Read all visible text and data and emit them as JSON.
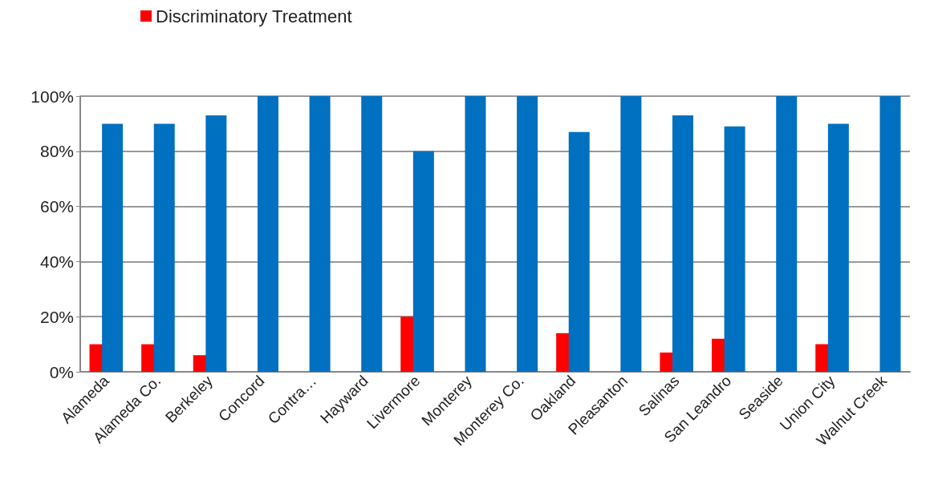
{
  "chart_data": {
    "type": "bar",
    "categories": [
      "Alameda",
      "Alameda Co.",
      "Berkeley",
      "Concord",
      "Contra…",
      "Hayward",
      "Livermore",
      "Monterey",
      "Monterey Co.",
      "Oakland",
      "Pleasanton",
      "Salinas",
      "San Leandro",
      "Seaside",
      "Union City",
      "Walnut Creek"
    ],
    "series": [
      {
        "name": "Discriminatory Treatment",
        "color": "#ff0000",
        "values": [
          10,
          10,
          6,
          0,
          0,
          0,
          20,
          0,
          0,
          14,
          0,
          7,
          12,
          0,
          10,
          0
        ]
      },
      {
        "color": "#0070c0",
        "values": [
          90,
          90,
          93,
          100,
          100,
          100,
          80,
          100,
          100,
          87,
          100,
          93,
          89,
          100,
          90,
          100
        ]
      }
    ],
    "ylim": [
      0,
      100
    ],
    "yticks": [
      {
        "value": 0,
        "label": "0%"
      },
      {
        "value": 20,
        "label": "20%"
      },
      {
        "value": 40,
        "label": "40%"
      },
      {
        "value": 60,
        "label": "60%"
      },
      {
        "value": 80,
        "label": "80%"
      },
      {
        "value": 100,
        "label": "100%"
      }
    ],
    "grid": "y",
    "legend": "top left"
  }
}
